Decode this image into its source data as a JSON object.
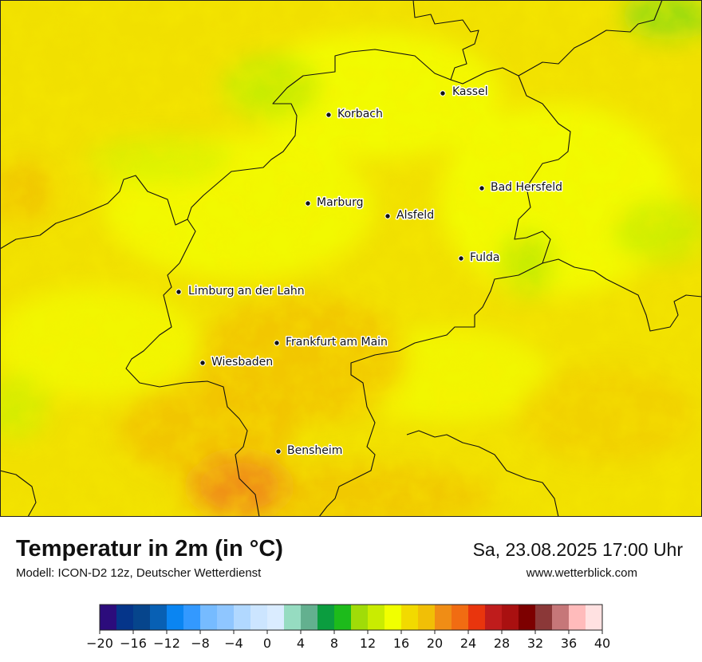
{
  "map": {
    "cities": [
      {
        "name": "Kassel"
      },
      {
        "name": "Korbach"
      },
      {
        "name": "Bad Hersfeld"
      },
      {
        "name": "Marburg"
      },
      {
        "name": "Alsfeld"
      },
      {
        "name": "Fulda"
      },
      {
        "name": "Limburg an der Lahn"
      },
      {
        "name": "Frankfurt am Main"
      },
      {
        "name": "Wiesbaden"
      },
      {
        "name": "Bensheim"
      }
    ]
  },
  "footer": {
    "title": "Temperatur in 2m (in °C)",
    "subtitle": "Modell: ICON-D2 12z, Deutscher Wetterdienst",
    "datetime": "Sa, 23.08.2025 17:00 Uhr",
    "source": "www.wetterblick.com"
  },
  "colorscale": {
    "colors": [
      "#2c0c7c",
      "#05358a",
      "#06458c",
      "#0860b4",
      "#0a85f2",
      "#3399ff",
      "#76bbff",
      "#8fc6ff",
      "#b1d8ff",
      "#cce5ff",
      "#daecff",
      "#96dcc1",
      "#63b08f",
      "#0b9d3f",
      "#1dbb1b",
      "#a0dc08",
      "#c9ec01",
      "#f1ff00",
      "#f2da00",
      "#f1bf06",
      "#f08d15",
      "#f16c12",
      "#e9350d",
      "#bf1c1c",
      "#a91010",
      "#7d0000",
      "#8b3838",
      "#c67779",
      "#ffbbbb",
      "#ffe1e1"
    ],
    "ticks": [
      "−20",
      "−16",
      "−12",
      "−8",
      "−4",
      "0",
      "4",
      "8",
      "12",
      "16",
      "20",
      "24",
      "28",
      "32",
      "36",
      "40"
    ]
  }
}
